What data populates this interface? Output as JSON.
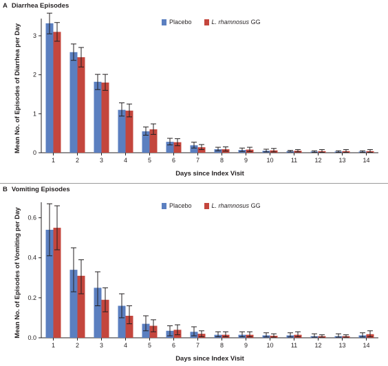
{
  "colors": {
    "placebo": "#5b7fc0",
    "lgg": "#c4463d",
    "error_bar": "#231f20",
    "axis": "#231f20"
  },
  "chart_data": [
    {
      "type": "bar",
      "panel_letter": "A",
      "title": "Diarrhea Episodes",
      "xlabel": "Days since Index Visit",
      "ylabel": "Mean No. of Episodes of Diarrhea per Day",
      "categories": [
        "1",
        "2",
        "3",
        "4",
        "5",
        "6",
        "7",
        "8",
        "9",
        "10",
        "11",
        "12",
        "13",
        "14"
      ],
      "ylim": [
        0,
        3.3
      ],
      "yticks": [
        0,
        1,
        2,
        3
      ],
      "ytick_labels": [
        "0",
        "1",
        "2",
        "3"
      ],
      "legend": {
        "placement": "top-center",
        "entries": [
          {
            "prefix": "Placebo",
            "italic": ""
          },
          {
            "prefix": "",
            "italic": "L. rhamnosus",
            "suffix": " GG"
          }
        ]
      },
      "series": [
        {
          "name": "Placebo",
          "values": [
            3.32,
            2.58,
            1.82,
            1.1,
            0.55,
            0.28,
            0.19,
            0.09,
            0.07,
            0.05,
            0.04,
            0.03,
            0.03,
            0.03
          ],
          "err_low": [
            3.05,
            2.37,
            1.62,
            0.94,
            0.45,
            0.2,
            0.12,
            0.05,
            0.03,
            0.02,
            0.02,
            0.01,
            0.01,
            0.01
          ],
          "err_high": [
            3.58,
            2.79,
            2.01,
            1.28,
            0.66,
            0.37,
            0.27,
            0.14,
            0.12,
            0.09,
            0.06,
            0.05,
            0.05,
            0.05
          ]
        },
        {
          "name": "L. rhamnosus GG",
          "values": [
            3.1,
            2.45,
            1.8,
            1.08,
            0.6,
            0.27,
            0.14,
            0.09,
            0.08,
            0.06,
            0.05,
            0.04,
            0.04,
            0.04
          ],
          "err_low": [
            2.86,
            2.2,
            1.6,
            0.92,
            0.47,
            0.18,
            0.08,
            0.04,
            0.03,
            0.02,
            0.02,
            0.01,
            0.01,
            0.01
          ],
          "err_high": [
            3.34,
            2.7,
            2.01,
            1.25,
            0.74,
            0.36,
            0.21,
            0.15,
            0.14,
            0.11,
            0.08,
            0.08,
            0.08,
            0.08
          ]
        }
      ]
    },
    {
      "type": "bar",
      "panel_letter": "B",
      "title": "Vomiting Episodes",
      "xlabel": "Days since Index Visit",
      "ylabel": "Mean No. of Episodes of Vomiting per Day",
      "categories": [
        "1",
        "2",
        "3",
        "4",
        "5",
        "6",
        "7",
        "8",
        "9",
        "10",
        "11",
        "12",
        "13",
        "14"
      ],
      "ylim": [
        0,
        0.65
      ],
      "yticks": [
        0,
        0.2,
        0.4,
        0.6
      ],
      "ytick_labels": [
        "0.0",
        "0.2",
        "0.4",
        "0.6"
      ],
      "legend": {
        "placement": "top-center",
        "entries": [
          {
            "prefix": "Placebo",
            "italic": ""
          },
          {
            "prefix": "",
            "italic": "L. rhamnosus",
            "suffix": " GG"
          }
        ]
      },
      "series": [
        {
          "name": "Placebo",
          "values": [
            0.54,
            0.34,
            0.25,
            0.16,
            0.07,
            0.035,
            0.03,
            0.015,
            0.015,
            0.012,
            0.012,
            0.008,
            0.008,
            0.012
          ],
          "err_low": [
            0.41,
            0.23,
            0.16,
            0.1,
            0.035,
            0.01,
            0.01,
            0.005,
            0.005,
            0.004,
            0.004,
            0.003,
            0.003,
            0.004
          ],
          "err_high": [
            0.67,
            0.45,
            0.33,
            0.22,
            0.11,
            0.06,
            0.055,
            0.03,
            0.03,
            0.025,
            0.025,
            0.02,
            0.02,
            0.025
          ]
        },
        {
          "name": "L. rhamnosus GG",
          "values": [
            0.55,
            0.31,
            0.19,
            0.11,
            0.06,
            0.04,
            0.02,
            0.015,
            0.015,
            0.01,
            0.015,
            0.008,
            0.008,
            0.018
          ],
          "err_low": [
            0.44,
            0.22,
            0.13,
            0.07,
            0.03,
            0.015,
            0.005,
            0.005,
            0.005,
            0.003,
            0.005,
            0.003,
            0.003,
            0.005
          ],
          "err_high": [
            0.66,
            0.39,
            0.25,
            0.16,
            0.09,
            0.065,
            0.035,
            0.03,
            0.03,
            0.02,
            0.03,
            0.015,
            0.015,
            0.035
          ]
        }
      ]
    }
  ]
}
